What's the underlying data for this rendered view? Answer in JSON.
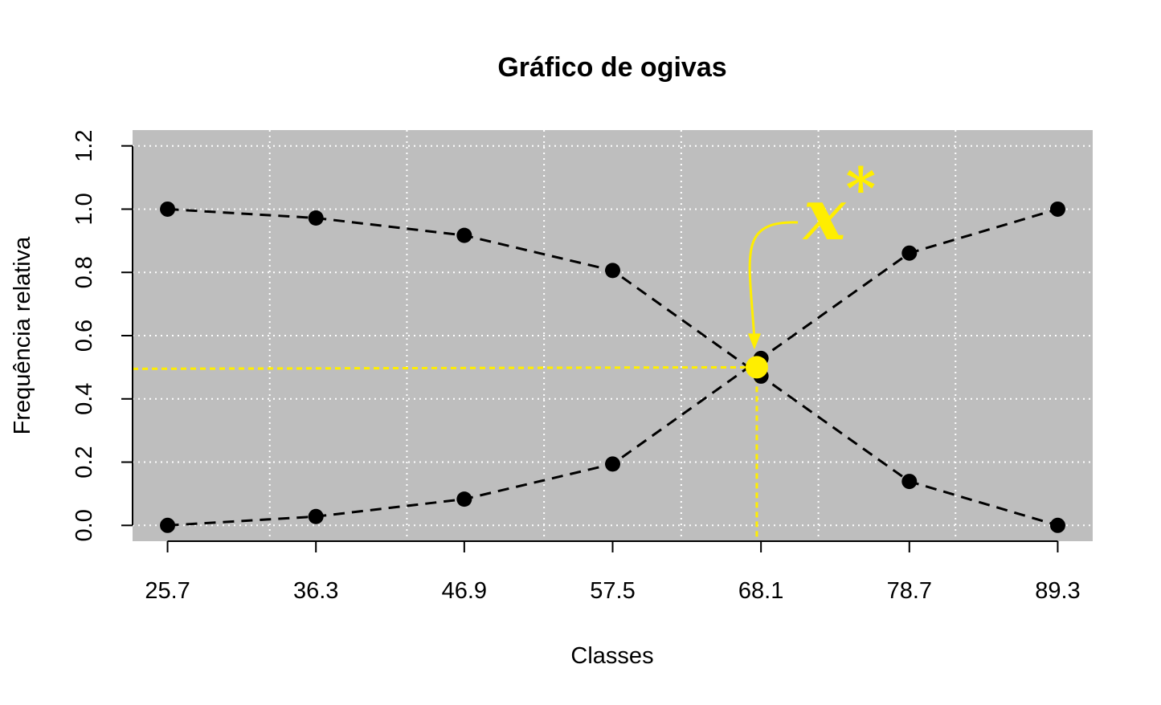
{
  "chart_data": {
    "type": "line",
    "title": "Gráfico de ogivas",
    "xlabel": "Classes",
    "ylabel": "Frequência relativa",
    "x_tick_labels": [
      "25.7",
      "36.3",
      "46.9",
      "57.5",
      "68.1",
      "78.7",
      "89.3"
    ],
    "x": [
      25.7,
      36.3,
      46.9,
      57.5,
      68.1,
      78.7,
      89.3
    ],
    "xlim": [
      23.2,
      91.8
    ],
    "y_tick_labels": [
      "0.0",
      "0.2",
      "0.4",
      "0.6",
      "0.8",
      "1.0",
      "1.2"
    ],
    "y_ticks": [
      0.0,
      0.2,
      0.4,
      0.6,
      0.8,
      1.0,
      1.2
    ],
    "ylim": [
      -0.05,
      1.25
    ],
    "grid": true,
    "legend": "none",
    "series": [
      {
        "values": [
          1.0,
          0.972,
          0.917,
          0.806,
          0.472,
          0.139,
          0.0
        ],
        "line_style": "dashed",
        "color": "#000000"
      },
      {
        "values": [
          0.0,
          0.028,
          0.083,
          0.194,
          0.528,
          0.861,
          1.0
        ],
        "line_style": "dashed",
        "color": "#000000"
      }
    ],
    "annotation": {
      "label": "x*",
      "point": {
        "x": 67.8,
        "y": 0.5
      },
      "color": "#ffee00"
    },
    "colors": {
      "plot_background": "#bebebe",
      "grid": "#ffffff",
      "points": "#000000",
      "highlight": "#ffee00"
    }
  }
}
